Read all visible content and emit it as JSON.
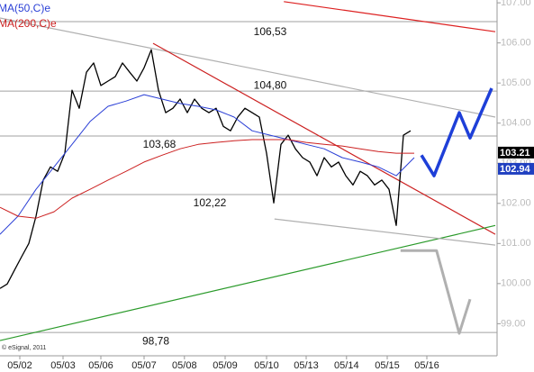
{
  "chart_data": {
    "type": "line",
    "copyright": "© eSignal, 2011",
    "xlim": [
      0,
      69
    ],
    "ylim": [
      98.2,
      107.07
    ],
    "xticks": [
      {
        "value": 2.75,
        "label": "05/02"
      },
      {
        "value": 8.75,
        "label": "05/03"
      },
      {
        "value": 14,
        "label": "05/06"
      },
      {
        "value": 20,
        "label": "05/07"
      },
      {
        "value": 25.6,
        "label": "05/08"
      },
      {
        "value": 31.25,
        "label": "05/09"
      },
      {
        "value": 37,
        "label": "05/10"
      },
      {
        "value": 42.5,
        "label": "05/13"
      },
      {
        "value": 48.1,
        "label": "05/14"
      },
      {
        "value": 53.75,
        "label": "05/15"
      },
      {
        "value": 59.25,
        "label": "05/16"
      }
    ],
    "yticks": [
      {
        "value": 99,
        "label": "99.00"
      },
      {
        "value": 100,
        "label": "100.00"
      },
      {
        "value": 101,
        "label": "101.00"
      },
      {
        "value": 102,
        "label": "102.00"
      },
      {
        "value": 103,
        "label": "103.00"
      },
      {
        "value": 104,
        "label": "104.00"
      },
      {
        "value": 105,
        "label": "105.00"
      },
      {
        "value": 106,
        "label": "106.00"
      },
      {
        "value": 107,
        "label": "107.00"
      }
    ],
    "series": [
      {
        "color": "#000000",
        "width": 1.3,
        "x": [
          0,
          1,
          2,
          3,
          4,
          5,
          6,
          7,
          8,
          9,
          10,
          11,
          12,
          13,
          14,
          15,
          16,
          17,
          18,
          19,
          20,
          21,
          22,
          23,
          24,
          25,
          26,
          27,
          28,
          29,
          30,
          31,
          32,
          33,
          34,
          35,
          36,
          37,
          38,
          39,
          40,
          41,
          42,
          43,
          44,
          45,
          46,
          47,
          48,
          49,
          50,
          51,
          52,
          53,
          54,
          55,
          56,
          57
        ],
        "values": [
          99.88,
          99.99,
          100.33,
          100.67,
          101.0,
          101.68,
          102.58,
          102.91,
          102.8,
          103.25,
          104.82,
          104.37,
          105.27,
          105.5,
          104.94,
          105.05,
          105.16,
          105.5,
          105.27,
          105.05,
          105.38,
          105.83,
          104.82,
          104.26,
          104.37,
          104.6,
          104.26,
          104.6,
          104.37,
          104.26,
          104.37,
          103.92,
          103.81,
          104.15,
          104.37,
          104.26,
          104.15,
          103.25,
          102.01,
          103.47,
          103.7,
          103.36,
          103.14,
          103.03,
          102.69,
          103.14,
          102.91,
          103.03,
          102.69,
          102.46,
          102.8,
          102.69,
          102.46,
          102.58,
          102.35,
          101.45,
          103.7,
          103.81
        ]
      },
      {
        "name": "MA(50,C)e",
        "color": "#2a3fd6",
        "width": 1,
        "x": [
          0,
          2.5,
          5,
          7.5,
          10,
          12.5,
          15,
          17.5,
          20,
          22.5,
          25,
          27.5,
          30,
          32.5,
          35,
          37.5,
          40,
          42.5,
          45,
          47.5,
          50,
          52.5,
          55,
          57.5
        ],
        "values": [
          101.23,
          101.68,
          102.35,
          102.91,
          103.47,
          104.04,
          104.42,
          104.55,
          104.71,
          104.6,
          104.49,
          104.42,
          104.33,
          104.15,
          103.81,
          103.7,
          103.59,
          103.47,
          103.36,
          103.14,
          103.03,
          102.91,
          102.69,
          103.14
        ]
      },
      {
        "name": "MA(200,C)e",
        "color": "#cc2020",
        "width": 1,
        "x": [
          0,
          2.5,
          5,
          7.5,
          10,
          12.5,
          15,
          17.5,
          20,
          22.5,
          25,
          27.5,
          30,
          32.5,
          35,
          37.5,
          40,
          42.5,
          45,
          47.5,
          50,
          52.5,
          55,
          57.5
        ],
        "values": [
          101.9,
          101.68,
          101.63,
          101.79,
          102.13,
          102.35,
          102.58,
          102.8,
          103.03,
          103.2,
          103.36,
          103.47,
          103.52,
          103.56,
          103.59,
          103.59,
          103.59,
          103.52,
          103.47,
          103.43,
          103.36,
          103.29,
          103.25,
          103.25
        ]
      },
      {
        "color": "#1e3fd8",
        "width": 3.5,
        "x": [
          58.5,
          60.25,
          63.75,
          65.25,
          68.25
        ],
        "values": [
          103.2,
          102.69,
          104.26,
          103.63,
          104.87
        ]
      },
      {
        "color": "#b0b0b0",
        "width": 3,
        "x": [
          55.6,
          60.6,
          63.75,
          65.25
        ],
        "values": [
          100.82,
          100.82,
          98.76,
          99.61
        ]
      }
    ],
    "trendlines": [
      {
        "color": "#b0b0b0",
        "x": [
          0,
          68.75
        ],
        "values": [
          106.62,
          104.15
        ]
      },
      {
        "color": "#cc2020",
        "x": [
          21.25,
          68.75
        ],
        "values": [
          105.99,
          101.23
        ]
      },
      {
        "color": "#2a9a2a",
        "x": [
          0,
          68.75
        ],
        "values": [
          98.58,
          101.45
        ]
      },
      {
        "color": "#b0b0b0",
        "x": [
          38.1,
          68.75
        ],
        "values": [
          101.61,
          100.96
        ]
      },
      {
        "color": "#dd2020",
        "x": [
          39.4,
          68.75
        ],
        "values": [
          107.03,
          106.28
        ]
      }
    ],
    "levels": [
      {
        "value": 106.53,
        "label": "106,53"
      },
      {
        "value": 104.8,
        "label": "104,80"
      },
      {
        "value": 103.68,
        "label": "103,68"
      },
      {
        "value": 102.22,
        "label": "102,22"
      },
      {
        "value": 98.78,
        "label": "98,78"
      }
    ],
    "last_values": [
      {
        "value": 103.21,
        "color": "#000000"
      },
      {
        "value": 102.94,
        "color": "#1f3fc0"
      }
    ]
  }
}
